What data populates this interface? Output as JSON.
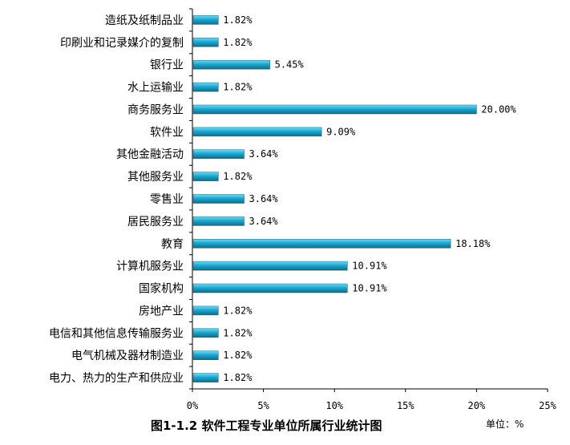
{
  "chart_data": {
    "type": "bar",
    "orientation": "horizontal",
    "categories": [
      "造纸及纸制品业",
      "印刷业和记录媒介的复制",
      "银行业",
      "水上运输业",
      "商务服务业",
      "软件业",
      "其他金融活动",
      "其他服务业",
      "零售业",
      "居民服务业",
      "教育",
      "计算机服务业",
      "国家机构",
      "房地产业",
      "电信和其他信息传输服务业",
      "电气机械及器材制造业",
      "电力、热力的生产和供应业"
    ],
    "values": [
      1.82,
      1.82,
      5.45,
      1.82,
      20.0,
      9.09,
      3.64,
      1.82,
      3.64,
      3.64,
      18.18,
      10.91,
      10.91,
      1.82,
      1.82,
      1.82,
      1.82
    ],
    "value_labels": [
      "1.82%",
      "1.82%",
      "5.45%",
      "1.82%",
      "20.00%",
      "9.09%",
      "3.64%",
      "1.82%",
      "3.64%",
      "3.64%",
      "18.18%",
      "10.91%",
      "10.91%",
      "1.82%",
      "1.82%",
      "1.82%",
      "1.82%"
    ],
    "xlim": [
      0,
      25
    ],
    "xticks": [
      0,
      5,
      10,
      15,
      20,
      25
    ],
    "xtick_labels": [
      "0%",
      "5%",
      "10%",
      "15%",
      "20%",
      "25%"
    ],
    "grid": false,
    "bar_color": "#1aa7cf",
    "title": "图1-1.2 软件工程专业单位所属行业统计图",
    "unit": "单位：%"
  }
}
